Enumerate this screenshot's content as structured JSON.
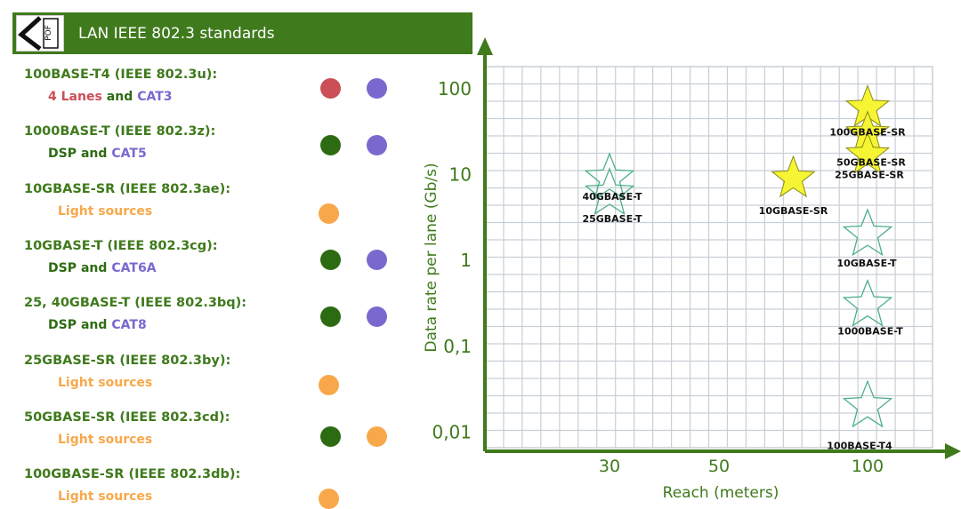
{
  "header": {
    "title": "LAN IEEE 802.3 standards",
    "logo_text": "POF"
  },
  "colors": {
    "header_bg": "#3f7a1c",
    "green": "#2d6b12",
    "red": "#cc4e57",
    "purple": "#7b68cf",
    "orange": "#f8a84a",
    "star_fill": "#f6f533",
    "star_outline": "#4caf8a"
  },
  "standards": [
    {
      "title": "100BASE-T4 (IEEE 802.3u):",
      "sub": [
        {
          "text": "4 Lanes",
          "color": "red"
        },
        {
          "text": "and",
          "color": "green"
        },
        {
          "text": "CAT3",
          "color": "purple"
        }
      ],
      "dots": [
        "red",
        "purple"
      ]
    },
    {
      "title": "1000BASE-T (IEEE 802.3z):",
      "sub": [
        {
          "text": "DSP",
          "color": "green"
        },
        {
          "text": "and",
          "color": "green"
        },
        {
          "text": "CAT5",
          "color": "purple"
        }
      ],
      "dots": [
        "green",
        "purple"
      ]
    },
    {
      "title": "10GBASE-SR (IEEE 802.3ae):",
      "sub": [
        {
          "text": "Light sources",
          "color": "orange"
        }
      ],
      "dots": [
        "orange"
      ]
    },
    {
      "title": "10GBASE-T (IEEE 802.3cg):",
      "sub": [
        {
          "text": "DSP",
          "color": "green"
        },
        {
          "text": "and",
          "color": "green"
        },
        {
          "text": "CAT6A",
          "color": "purple"
        }
      ],
      "dots": [
        "green",
        "purple"
      ]
    },
    {
      "title": "25, 40GBASE-T (IEEE 802.3bq):",
      "sub": [
        {
          "text": "DSP",
          "color": "green"
        },
        {
          "text": "and",
          "color": "green"
        },
        {
          "text": "CAT8",
          "color": "purple"
        }
      ],
      "dots": [
        "green",
        "purple"
      ]
    },
    {
      "title": "25GBASE-SR (IEEE 802.3by):",
      "sub": [
        {
          "text": "Light sources",
          "color": "orange"
        }
      ],
      "dots": [
        "orange"
      ]
    },
    {
      "title": "50GBASE-SR (IEEE 802.3cd):",
      "sub": [
        {
          "text": "Light sources",
          "color": "orange"
        }
      ],
      "dots": [
        "green",
        "orange"
      ]
    },
    {
      "title": "100GBASE-SR (IEEE 802.3db):",
      "sub": [
        {
          "text": "Light sources",
          "color": "orange"
        }
      ],
      "dots": [
        "orange"
      ]
    }
  ],
  "chart_data": {
    "type": "scatter",
    "xlabel": "Reach (meters)",
    "ylabel": "Data rate per lane (Gb/s)",
    "x_ticks": [
      "30",
      "50",
      "100"
    ],
    "y_ticks": [
      "100",
      "10",
      "1",
      "0,1",
      "0,01"
    ],
    "y_scale": "log",
    "grid": true,
    "points": [
      {
        "name": "100GBASE-SR",
        "x": 100,
        "y": 60,
        "style": "filled"
      },
      {
        "name": "50GBASE-SR",
        "x": 100,
        "y": 30,
        "style": "filled"
      },
      {
        "name": "25GBASE-SR",
        "x": 100,
        "y": 17,
        "style": "filled"
      },
      {
        "name": "10GBASE-SR",
        "x": 75,
        "y": 9,
        "style": "filled"
      },
      {
        "name": "40GBASE-T",
        "x": 30,
        "y": 9,
        "style": "outline"
      },
      {
        "name": "25GBASE-T",
        "x": 30,
        "y": 6,
        "style": "outline"
      },
      {
        "name": "10GBASE-T",
        "x": 100,
        "y": 2,
        "style": "outline"
      },
      {
        "name": "1000BASE-T",
        "x": 100,
        "y": 0.3,
        "style": "outline"
      },
      {
        "name": "100BASE-T4",
        "x": 100,
        "y": 0.02,
        "style": "outline"
      }
    ]
  }
}
